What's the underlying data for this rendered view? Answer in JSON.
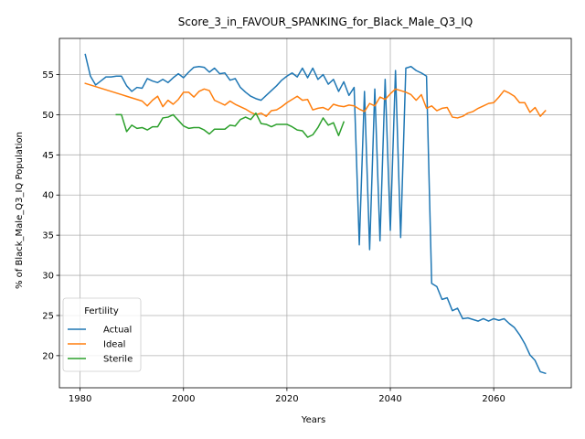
{
  "chart_data": {
    "type": "line",
    "title": "Score_3_in_FAVOUR_SPANKING_for_Black_Male_Q3_IQ",
    "xlabel": "Years",
    "ylabel": "% of Black_Male_Q3_IQ Population",
    "xlim": [
      1976,
      2075
    ],
    "ylim": [
      16.0,
      59.5
    ],
    "xticks": [
      1980,
      2000,
      2020,
      2040,
      2060
    ],
    "yticks": [
      20,
      25,
      30,
      35,
      40,
      45,
      50,
      55
    ],
    "grid": true,
    "legend": {
      "title": "Fertility",
      "placement": "lower-left"
    },
    "series": [
      {
        "name": "Actual",
        "color": "#1f77b4",
        "x": [
          1981,
          1982,
          1983,
          1984,
          1985,
          1986,
          1987,
          1988,
          1989,
          1990,
          1991,
          1992,
          1993,
          1994,
          1995,
          1996,
          1997,
          1998,
          1999,
          2000,
          2001,
          2002,
          2003,
          2004,
          2005,
          2006,
          2007,
          2008,
          2009,
          2010,
          2011,
          2012,
          2013,
          2014,
          2015,
          2016,
          2017,
          2018,
          2019,
          2020,
          2021,
          2022,
          2023,
          2024,
          2025,
          2026,
          2027,
          2028,
          2029,
          2030,
          2031,
          2032,
          2033,
          2034,
          2035,
          2036,
          2037,
          2038,
          2039,
          2040,
          2041,
          2042,
          2043,
          2044,
          2045,
          2046,
          2047,
          2048,
          2049,
          2050,
          2051,
          2052,
          2053,
          2054,
          2055,
          2056,
          2057,
          2058,
          2059,
          2060,
          2061,
          2062,
          2063,
          2064,
          2065,
          2066,
          2067,
          2068,
          2069,
          2070
        ],
        "values": [
          57.5,
          54.8,
          53.7,
          54.2,
          54.7,
          54.7,
          54.8,
          54.8,
          53.6,
          52.9,
          53.4,
          53.3,
          54.5,
          54.2,
          54.0,
          54.4,
          54.0,
          54.6,
          55.1,
          54.6,
          55.3,
          55.9,
          56.0,
          55.9,
          55.3,
          55.8,
          55.1,
          55.2,
          54.3,
          54.5,
          53.4,
          52.8,
          52.3,
          52.0,
          51.8,
          52.4,
          53.0,
          53.6,
          54.3,
          54.8,
          55.2,
          54.7,
          55.8,
          54.6,
          55.8,
          54.4,
          55.0,
          53.8,
          54.4,
          52.9,
          54.1,
          52.4,
          53.4,
          33.8,
          52.9,
          33.2,
          53.2,
          34.3,
          54.4,
          35.6,
          55.5,
          34.7,
          55.8,
          56.0,
          55.5,
          55.2,
          54.8,
          29.0,
          28.6,
          27.0,
          27.2,
          25.6,
          25.9,
          24.6,
          24.7,
          24.5,
          24.3,
          24.6,
          24.3,
          24.6,
          24.4,
          24.6,
          24.0,
          23.5,
          22.6,
          21.5,
          20.1,
          19.4,
          18.0,
          17.8
        ]
      },
      {
        "name": "Ideal",
        "color": "#ff7f0e",
        "x": [
          1981,
          1982,
          1983,
          1984,
          1985,
          1986,
          1987,
          1988,
          1989,
          1990,
          1991,
          1992,
          1993,
          1994,
          1995,
          1996,
          1997,
          1998,
          1999,
          2000,
          2001,
          2002,
          2003,
          2004,
          2005,
          2006,
          2007,
          2008,
          2009,
          2010,
          2011,
          2012,
          2013,
          2014,
          2015,
          2016,
          2017,
          2018,
          2019,
          2020,
          2021,
          2022,
          2023,
          2024,
          2025,
          2026,
          2027,
          2028,
          2029,
          2030,
          2031,
          2032,
          2033,
          2034,
          2035,
          2036,
          2037,
          2038,
          2039,
          2040,
          2041,
          2042,
          2043,
          2044,
          2045,
          2046,
          2047,
          2048,
          2049,
          2050,
          2051,
          2052,
          2053,
          2054,
          2055,
          2056,
          2057,
          2058,
          2059,
          2060,
          2061,
          2062,
          2063,
          2064,
          2065,
          2066,
          2067,
          2068,
          2069,
          2070
        ],
        "values": [
          53.9,
          53.7,
          53.5,
          53.3,
          53.1,
          52.9,
          52.7,
          52.5,
          52.3,
          52.1,
          51.9,
          51.7,
          51.1,
          51.8,
          52.3,
          51.0,
          51.8,
          51.3,
          51.9,
          52.8,
          52.8,
          52.2,
          52.9,
          53.2,
          53.0,
          51.8,
          51.5,
          51.2,
          51.7,
          51.3,
          51.0,
          50.7,
          50.3,
          50.0,
          50.2,
          49.8,
          50.5,
          50.6,
          51.0,
          51.5,
          51.9,
          52.3,
          51.8,
          51.9,
          50.6,
          50.8,
          50.9,
          50.6,
          51.3,
          51.1,
          51.0,
          51.2,
          51.1,
          50.7,
          50.4,
          51.4,
          51.1,
          52.2,
          51.9,
          52.6,
          53.2,
          53.0,
          52.8,
          52.5,
          51.8,
          52.5,
          50.8,
          51.1,
          50.5,
          50.8,
          50.9,
          49.7,
          49.6,
          49.8,
          50.2,
          50.4,
          50.8,
          51.1,
          51.4,
          51.5,
          52.2,
          53.0,
          52.7,
          52.3,
          51.5,
          51.5,
          50.3,
          50.9,
          49.8,
          50.5
        ]
      },
      {
        "name": "Sterile",
        "color": "#2ca02c",
        "x": [
          1987,
          1988,
          1989,
          1990,
          1991,
          1992,
          1993,
          1994,
          1995,
          1996,
          1997,
          1998,
          1999,
          2000,
          2001,
          2002,
          2003,
          2004,
          2005,
          2006,
          2007,
          2008,
          2009,
          2010,
          2011,
          2012,
          2013,
          2014,
          2015,
          2016,
          2017,
          2018,
          2019,
          2020,
          2021,
          2022,
          2023,
          2024,
          2025,
          2026,
          2027,
          2028,
          2029,
          2030,
          2031
        ],
        "values": [
          50.0,
          50.0,
          47.9,
          48.7,
          48.3,
          48.4,
          48.1,
          48.5,
          48.5,
          49.6,
          49.7,
          50.0,
          49.3,
          48.6,
          48.3,
          48.4,
          48.4,
          48.1,
          47.6,
          48.2,
          48.2,
          48.2,
          48.7,
          48.6,
          49.4,
          49.7,
          49.4,
          50.2,
          48.9,
          48.8,
          48.5,
          48.8,
          48.8,
          48.8,
          48.5,
          48.1,
          48.0,
          47.2,
          47.5,
          48.4,
          49.6,
          48.7,
          49.0,
          47.4,
          49.1
        ]
      }
    ]
  }
}
